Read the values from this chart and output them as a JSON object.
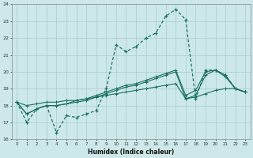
{
  "xlabel": "Humidex (Indice chaleur)",
  "bg_color": "#cce8e8",
  "grid_color": "#aacccc",
  "line_color": "#1a7060",
  "xlim": [
    -0.5,
    23.5
  ],
  "ylim": [
    16,
    24
  ],
  "yticks": [
    16,
    17,
    18,
    19,
    20,
    21,
    22,
    23,
    24
  ],
  "xticks": [
    0,
    1,
    2,
    3,
    4,
    5,
    6,
    7,
    8,
    9,
    10,
    11,
    12,
    13,
    14,
    15,
    16,
    17,
    18,
    19,
    20,
    21,
    22,
    23
  ],
  "series_main": {
    "x": [
      0,
      1,
      2,
      3,
      4,
      5,
      6,
      7,
      8,
      9,
      10,
      11,
      12,
      13,
      14,
      15,
      16,
      17,
      18,
      19,
      20,
      21,
      22,
      23
    ],
    "y": [
      18.2,
      17.0,
      17.8,
      18.0,
      16.4,
      17.4,
      17.3,
      17.5,
      17.7,
      19.0,
      21.6,
      21.2,
      21.5,
      22.0,
      22.3,
      23.3,
      23.7,
      23.1,
      18.4,
      20.1,
      20.1,
      19.8,
      19.0,
      18.8
    ]
  },
  "series_smooth": [
    {
      "x": [
        0,
        1,
        2,
        3,
        4,
        5,
        6,
        7,
        8,
        9,
        10,
        11,
        12,
        13,
        14,
        15,
        16,
        17,
        18,
        19,
        20,
        21,
        22,
        23
      ],
      "y": [
        18.2,
        17.5,
        17.8,
        18.0,
        18.0,
        18.1,
        18.2,
        18.3,
        18.5,
        18.7,
        18.9,
        19.1,
        19.2,
        19.4,
        19.6,
        19.8,
        20.0,
        18.4,
        18.6,
        19.8,
        20.1,
        19.8,
        19.0,
        18.8
      ]
    },
    {
      "x": [
        0,
        1,
        2,
        3,
        4,
        5,
        6,
        7,
        8,
        9,
        10,
        11,
        12,
        13,
        14,
        15,
        16,
        17,
        18,
        19,
        20,
        21,
        22,
        23
      ],
      "y": [
        18.2,
        17.5,
        17.8,
        18.0,
        18.0,
        18.1,
        18.3,
        18.4,
        18.6,
        18.8,
        19.0,
        19.2,
        19.3,
        19.5,
        19.7,
        19.9,
        20.1,
        18.6,
        18.9,
        20.0,
        20.1,
        19.7,
        19.0,
        18.8
      ]
    },
    {
      "x": [
        0,
        1,
        2,
        3,
        4,
        5,
        6,
        7,
        8,
        9,
        10,
        11,
        12,
        13,
        14,
        15,
        16,
        17,
        18,
        19,
        20,
        21,
        22,
        23
      ],
      "y": [
        18.2,
        18.0,
        18.1,
        18.2,
        18.2,
        18.3,
        18.3,
        18.4,
        18.5,
        18.6,
        18.7,
        18.8,
        18.9,
        19.0,
        19.1,
        19.2,
        19.3,
        18.4,
        18.5,
        18.7,
        18.9,
        19.0,
        19.0,
        18.8
      ]
    }
  ]
}
